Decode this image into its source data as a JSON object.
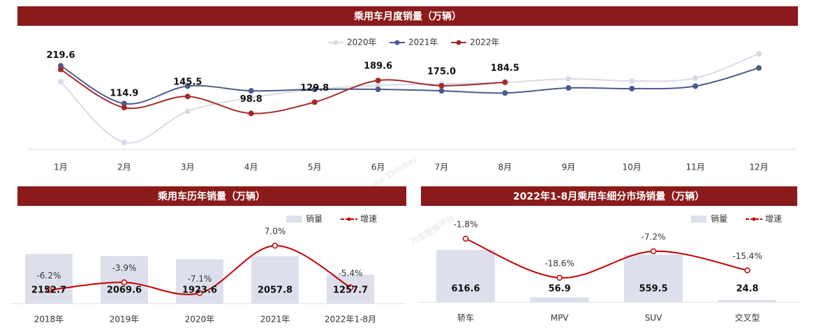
{
  "chart_data": [
    {
      "type": "line",
      "title": "乘用车月度销量（万辆）",
      "categories": [
        "1月",
        "2月",
        "3月",
        "4月",
        "5月",
        "6月",
        "7月",
        "8月",
        "9月",
        "10月",
        "11月",
        "12月"
      ],
      "series": [
        {
          "name": "2020年",
          "color": "#d8dae6",
          "values": [
            186,
            19,
            105,
            142,
            165,
            176,
            180,
            184,
            194,
            188,
            196,
            263
          ]
        },
        {
          "name": "2021年",
          "color": "#4b5a8c",
          "values": [
            230,
            126,
            174,
            161,
            165,
            165,
            161,
            155,
            169,
            167,
            174,
            224
          ]
        },
        {
          "name": "2022年",
          "color": "#a32a2a",
          "values": [
            219.6,
            114.9,
            145.5,
            98.8,
            129.8,
            189.6,
            175.0,
            184.5,
            null,
            null,
            null,
            null
          ],
          "value_labels": [
            "219.6",
            "114.9",
            "145.5",
            "98.8",
            "129.8",
            "189.6",
            "175.0",
            "184.5",
            null,
            null,
            null,
            null
          ]
        }
      ]
    },
    {
      "type": "combo",
      "title": "乘用车历年销量（万辆）",
      "categories": [
        "2018年",
        "2019年",
        "2020年",
        "2021年",
        "2022年1-8月"
      ],
      "series": [
        {
          "name": "销量",
          "color": "#dde0ec",
          "values": [
            2152.7,
            2069.6,
            1923.6,
            2057.8,
            1257.7
          ]
        },
        {
          "name": "增速",
          "color": "#c00000",
          "axis": "y2",
          "values": [
            -6.2,
            -3.9,
            -7.1,
            7.0,
            -5.4
          ],
          "value_labels": [
            "-6.2%",
            "-3.9%",
            "-7.1%",
            "7.0%",
            "-5.4%"
          ]
        }
      ]
    },
    {
      "type": "combo",
      "title": "2022年1-8月乘用车细分市场销量（万辆）",
      "categories": [
        "轿车",
        "MPV",
        "SUV",
        "交叉型"
      ],
      "series": [
        {
          "name": "销量",
          "color": "#dde0ec",
          "values": [
            616.6,
            56.9,
            559.5,
            24.8
          ]
        },
        {
          "name": "增速",
          "color": "#c00000",
          "axis": "y2",
          "values": [
            -1.8,
            -18.6,
            -7.2,
            -15.4
          ],
          "value_labels": [
            "-1.8%",
            "-18.6%",
            "-7.2%",
            "-15.4%"
          ]
        }
      ]
    }
  ],
  "watermark": [
    "Auto Thinker",
    "汽车智库平台"
  ]
}
